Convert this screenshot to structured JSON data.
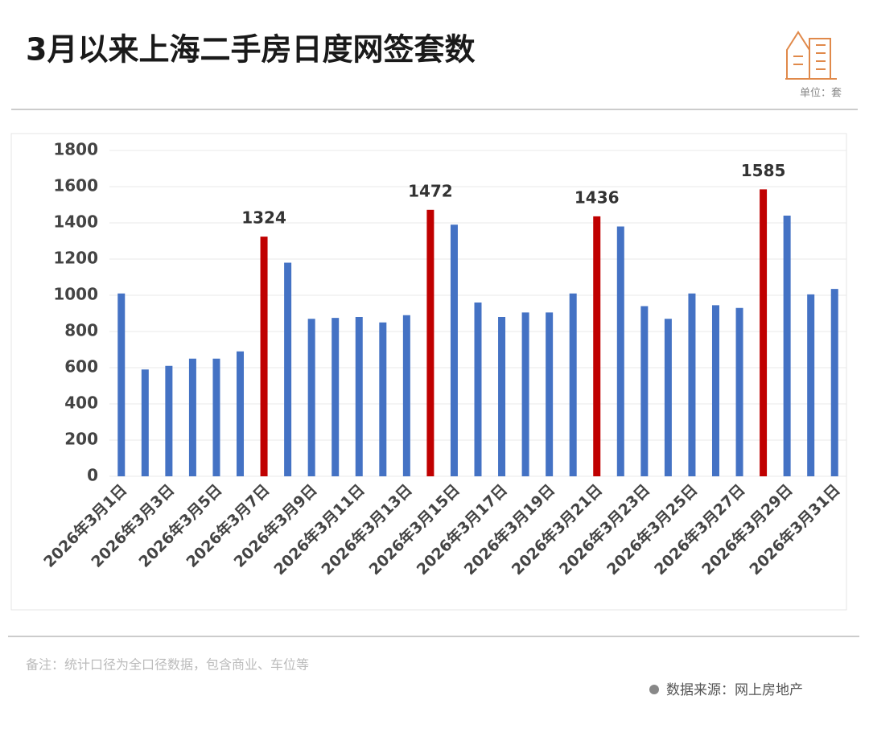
{
  "header": {
    "title": "3月以来上海二手房日度网签套数",
    "unit": "单位：套"
  },
  "chart_data": {
    "type": "bar",
    "categories": [
      "2026年3月1日",
      null,
      "2026年3月3日",
      null,
      "2026年3月5日",
      null,
      "2026年3月7日",
      null,
      "2026年3月9日",
      null,
      "2026年3月11日",
      null,
      "2026年3月13日",
      null,
      "2026年3月15日",
      null,
      "2026年3月17日",
      null,
      "2026年3月19日",
      null,
      "2026年3月21日",
      null,
      "2026年3月23日",
      null,
      "2026年3月25日",
      null,
      "2026年3月27日",
      null,
      "2026年3月29日",
      null,
      "2026年3月31日"
    ],
    "values": [
      1010,
      590,
      610,
      650,
      650,
      690,
      1324,
      1180,
      870,
      875,
      880,
      850,
      890,
      1472,
      1390,
      960,
      880,
      905,
      905,
      1010,
      1436,
      1380,
      940,
      870,
      1010,
      945,
      930,
      1585,
      1440,
      1005,
      1035
    ],
    "value_labels": [
      null,
      null,
      null,
      null,
      null,
      null,
      "1324",
      null,
      null,
      null,
      null,
      null,
      null,
      "1472",
      null,
      null,
      null,
      null,
      null,
      null,
      "1436",
      null,
      null,
      null,
      null,
      null,
      null,
      "1585",
      null,
      null,
      null
    ],
    "colors": [
      "#4472c4",
      "#4472c4",
      "#4472c4",
      "#4472c4",
      "#4472c4",
      "#4472c4",
      "#c00000",
      "#4472c4",
      "#4472c4",
      "#4472c4",
      "#4472c4",
      "#4472c4",
      "#4472c4",
      "#c00000",
      "#4472c4",
      "#4472c4",
      "#4472c4",
      "#4472c4",
      "#4472c4",
      "#4472c4",
      "#c00000",
      "#4472c4",
      "#4472c4",
      "#4472c4",
      "#4472c4",
      "#4472c4",
      "#4472c4",
      "#c00000",
      "#4472c4",
      "#4472c4",
      "#4472c4"
    ],
    "ylim": [
      0,
      1800
    ],
    "yticks": [
      0,
      200,
      400,
      600,
      800,
      1000,
      1200,
      1400,
      1600,
      1800
    ],
    "grid": true
  },
  "footer": {
    "note": "备注：统计口径为全口径数据，包含商业、车位等",
    "source": "数据来源：网上房地产"
  }
}
